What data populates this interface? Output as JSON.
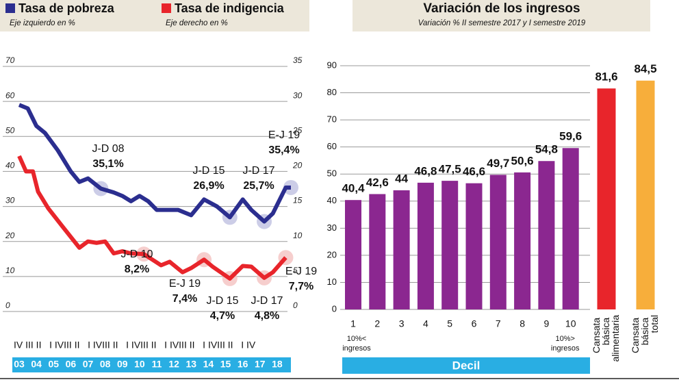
{
  "chart_data": [
    {
      "type": "line",
      "series": [
        {
          "name": "Tasa de pobreza",
          "axis_note": "Eje izquierdo en %",
          "color": "#2b2e8f",
          "x": [
            2003,
            2003.5,
            2004,
            2004.5,
            2005.25,
            2006,
            2006.5,
            2007,
            2007.75,
            2008.5,
            2009,
            2009.5,
            2010,
            2010.5,
            2011,
            2011.75,
            2012.25,
            2013,
            2013.75,
            2014.5,
            2015.25,
            2016,
            2016.5,
            2017.25,
            2017.75,
            2018.5,
            2018.8
          ],
          "values": [
            59,
            58,
            53,
            51,
            46,
            40,
            37,
            38,
            35.1,
            34,
            33,
            31.5,
            33,
            31.5,
            29,
            29,
            29,
            27.5,
            32,
            30,
            26.9,
            32,
            29,
            25.7,
            28,
            35.4,
            35.4
          ]
        },
        {
          "name": "Tasa de indigencia",
          "axis_note": "Eje derecho en %",
          "color": "#e8252b",
          "axis": "y2",
          "x": [
            2003,
            2003.4,
            2003.8,
            2004.1,
            2004.7,
            2005.5,
            2006.5,
            2007,
            2007.5,
            2008,
            2008.5,
            2009,
            2009.5,
            2010.25,
            2010.5,
            2011.25,
            2011.75,
            2012.5,
            2013,
            2013.75,
            2014.25,
            2015.25,
            2016,
            2016.5,
            2017.25,
            2017.75,
            2018.5
          ],
          "values": [
            22.2,
            20,
            20,
            17.1,
            14.7,
            12.2,
            9.1,
            10,
            9.8,
            10,
            8.3,
            8.6,
            8.3,
            8.2,
            7.8,
            6.6,
            7.1,
            5.6,
            6.2,
            7.4,
            6.4,
            4.7,
            6.5,
            6.4,
            4.8,
            5.6,
            7.7
          ]
        }
      ],
      "xlim": [
        2003,
        2018.8
      ],
      "xticks": [
        {
          "value": 2003,
          "label": "03"
        },
        {
          "value": 2004,
          "label": "04"
        },
        {
          "value": 2005,
          "label": "05"
        },
        {
          "value": 2006,
          "label": "06"
        },
        {
          "value": 2007,
          "label": "07"
        },
        {
          "value": 2008,
          "label": "08"
        },
        {
          "value": 2009,
          "label": "09"
        },
        {
          "value": 2010,
          "label": "10"
        },
        {
          "value": 2011,
          "label": "11"
        },
        {
          "value": 2012,
          "label": "12"
        },
        {
          "value": 2013,
          "label": "13"
        },
        {
          "value": 2014,
          "label": "14"
        },
        {
          "value": 2015,
          "label": "15"
        },
        {
          "value": 2016,
          "label": "16"
        },
        {
          "value": 2017,
          "label": "17"
        },
        {
          "value": 2018,
          "label": "18"
        }
      ],
      "period_row": "IV III II   I IVIII II   I IVIII II   I IVIII II   I IVIII II   I IVIII II   I IV",
      "ylim": [
        0,
        70
      ],
      "yticks": [
        0,
        10,
        20,
        30,
        40,
        50,
        60,
        70
      ],
      "y2lim": [
        0,
        35
      ],
      "y2ticks": [
        0,
        5,
        10,
        15,
        20,
        25,
        30,
        35
      ],
      "grid": true,
      "annotations": [
        {
          "text": "J-D 08",
          "x": 2007.75,
          "value": 35.1,
          "label": "35,1%"
        },
        {
          "text": "J-D 15",
          "x": 2015.25,
          "value": 26.9,
          "label": "26,9%"
        },
        {
          "text": "J-D 17",
          "x": 2017.25,
          "value": 25.7,
          "label": "25,7%"
        },
        {
          "text": "E-J 19",
          "x": 2018.8,
          "value": 35.4,
          "label": "35,4%"
        },
        {
          "text": "J-D 10",
          "x": 2010.25,
          "value": 8.2,
          "label": "8,2%",
          "axis": "y2"
        },
        {
          "text": "E-J 19",
          "x": 2013.75,
          "value": 7.4,
          "label": "7,4%",
          "axis": "y2"
        },
        {
          "text": "J-D 15",
          "x": 2015.25,
          "value": 4.7,
          "label": "4,7%",
          "axis": "y2"
        },
        {
          "text": "J-D 17",
          "x": 2017.25,
          "value": 4.8,
          "label": "4,8%",
          "axis": "y2"
        },
        {
          "text": "E-J 19",
          "x": 2018.5,
          "value": 7.7,
          "label": "7,7%",
          "axis": "y2"
        }
      ]
    },
    {
      "type": "bar",
      "title": "Variación de los ingresos",
      "subtitle": "Variación % II semestre 2017 y I semestre 2019",
      "categories": [
        "1",
        "2",
        "3",
        "4",
        "5",
        "6",
        "7",
        "8",
        "9",
        "10",
        "Cansata básica alimentaria",
        "Cansata básica total"
      ],
      "values": [
        40.4,
        42.6,
        44,
        46.8,
        47.5,
        46.6,
        49.7,
        50.6,
        54.8,
        59.6,
        81.6,
        84.5
      ],
      "value_labels": [
        "40,4",
        "42,6",
        "44",
        "46,8",
        "47,5",
        "46,6",
        "49,7",
        "50,6",
        "54,8",
        "59,6",
        "81,6",
        "84,5"
      ],
      "colors": [
        "#8b2790",
        "#8b2790",
        "#8b2790",
        "#8b2790",
        "#8b2790",
        "#8b2790",
        "#8b2790",
        "#8b2790",
        "#8b2790",
        "#8b2790",
        "#e8252b",
        "#f7ae3b"
      ],
      "first_note": [
        "10%<",
        "ingresos"
      ],
      "last_note": [
        "10%>",
        "ingresos"
      ],
      "xlabel": "Decil",
      "ylim": [
        0,
        90
      ],
      "yticks": [
        0,
        10,
        20,
        30,
        40,
        50,
        60,
        70,
        80,
        90
      ],
      "grid": true
    }
  ]
}
